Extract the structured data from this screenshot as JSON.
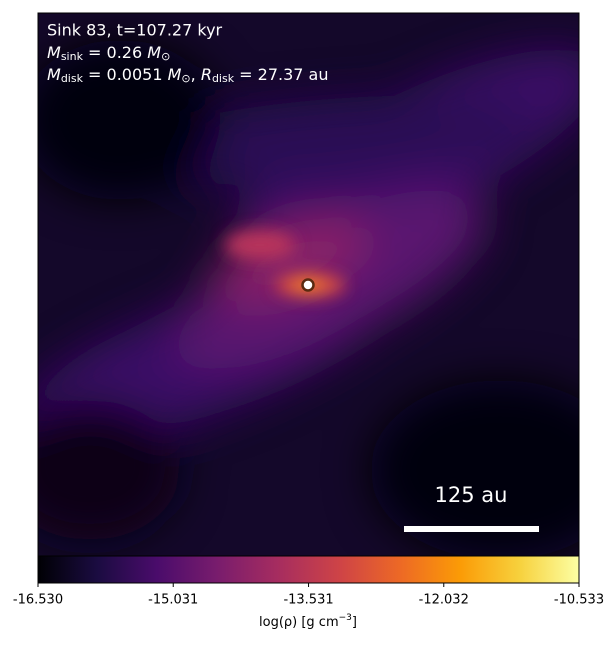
{
  "chart_data": {
    "type": "image",
    "annotations": {
      "line1": "Sink 83, t=107.27 kyr",
      "line2": {
        "symbol": "M",
        "subscript": "sink",
        "text": " = 0.26 ",
        "unit": "M",
        "unit_subscript": "⊙"
      },
      "line3": {
        "symbol": "M",
        "subscript": "disk",
        "text": " = 0.0051 ",
        "unit": "M",
        "unit_subscript": "⊙",
        "sep": ", ",
        "symbol2": "R",
        "subscript2": "disk",
        "text2": " = 27.37 au"
      }
    },
    "scale_bar": "125 au",
    "colorbar": {
      "label": {
        "text": "log(ρ) [g cm",
        "superscript": "−3",
        "end": "]"
      },
      "colormap": "inferno",
      "clim": [
        -16.53,
        -10.533
      ],
      "ticks": [
        {
          "value": -16.53,
          "label": "-16.530"
        },
        -15.031,
        -13.531,
        -12.032,
        -10.533
      ]
    }
  }
}
